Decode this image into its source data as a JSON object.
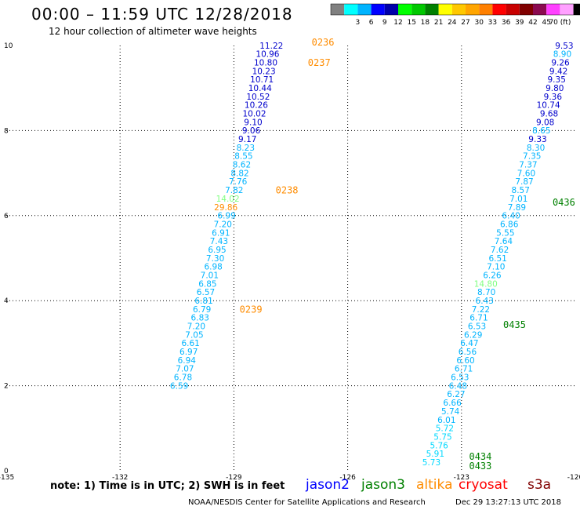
{
  "header": {
    "title": "00:00 – 11:59 UTC 12/28/2018",
    "subtitle": "12 hour collection of altimeter wave heights"
  },
  "colorbar": {
    "colors": [
      "#808080",
      "#00ffff",
      "#00b4ff",
      "#0000ff",
      "#0000aa",
      "#00ff00",
      "#00c800",
      "#008000",
      "#ffff00",
      "#ffc800",
      "#ffa500",
      "#ff8000",
      "#ff0000",
      "#c80000",
      "#800000",
      "#8b0a50",
      "#ff40ff",
      "#ffa0ff",
      "#000000"
    ],
    "labels": [
      "3",
      "6",
      "9",
      "12",
      "15",
      "18",
      "21",
      "24",
      "27",
      "30",
      "33",
      "36",
      "39",
      "42",
      "45",
      "70 (ft)"
    ]
  },
  "chart_data": {
    "type": "scatter",
    "xlim": [
      -135,
      -120
    ],
    "ylim": [
      0,
      10
    ],
    "x_ticks": [
      "-135",
      "-132",
      "-129",
      "-126",
      "-123",
      "-120"
    ],
    "y_ticks": [
      "0",
      "2",
      "4",
      "6",
      "8",
      "10"
    ],
    "grid": true,
    "tracks": [
      {
        "points": [
          {
            "x": -127.7,
            "y": 9.93,
            "label": "11.22",
            "color": "#0000cc"
          },
          {
            "x": -127.8,
            "y": 9.73,
            "label": "10.96",
            "color": "#0000cc"
          },
          {
            "x": -127.85,
            "y": 9.53,
            "label": "10.80",
            "color": "#0000cc"
          },
          {
            "x": -127.9,
            "y": 9.33,
            "label": "10.23",
            "color": "#0000cc"
          },
          {
            "x": -127.95,
            "y": 9.13,
            "label": "10.71",
            "color": "#0000cc"
          },
          {
            "x": -128.0,
            "y": 8.93,
            "label": "10.44",
            "color": "#0000cc"
          },
          {
            "x": -128.05,
            "y": 8.73,
            "label": "10.52",
            "color": "#0000cc"
          },
          {
            "x": -128.1,
            "y": 8.53,
            "label": "10.26",
            "color": "#0000cc"
          },
          {
            "x": -128.15,
            "y": 8.33,
            "label": "10.02",
            "color": "#0000cc"
          },
          {
            "x": -128.25,
            "y": 8.13,
            "label": "9.10",
            "color": "#0000cc"
          },
          {
            "x": -128.3,
            "y": 7.93,
            "label": "9.06",
            "color": "#0000cc"
          },
          {
            "x": -128.4,
            "y": 7.73,
            "label": "9.17",
            "color": "#0000cc"
          },
          {
            "x": -128.45,
            "y": 7.53,
            "label": "8.23",
            "color": "#00b4ff"
          },
          {
            "x": -128.5,
            "y": 7.33,
            "label": "8.55",
            "color": "#00b4ff"
          },
          {
            "x": -128.55,
            "y": 7.13,
            "label": "8.62",
            "color": "#00b4ff"
          },
          {
            "x": -128.6,
            "y": 6.93,
            "label": "8.82",
            "color": "#00b4ff"
          },
          {
            "x": -128.65,
            "y": 6.73,
            "label": "7.76",
            "color": "#00b4ff"
          },
          {
            "x": -128.75,
            "y": 6.53,
            "label": "7.82",
            "color": "#00b4ff"
          },
          {
            "x": -128.85,
            "y": 6.33,
            "label": "14.02",
            "color": "#80ff80"
          },
          {
            "x": -128.9,
            "y": 6.13,
            "label": "29.86",
            "color": "#ff8c00"
          },
          {
            "x": -128.95,
            "y": 5.93,
            "label": "6.99",
            "color": "#00b4ff"
          },
          {
            "x": -129.05,
            "y": 5.73,
            "label": "7.20",
            "color": "#00b4ff"
          },
          {
            "x": -129.1,
            "y": 5.53,
            "label": "6.91",
            "color": "#00b4ff"
          },
          {
            "x": -129.15,
            "y": 5.33,
            "label": "7.43",
            "color": "#00b4ff"
          },
          {
            "x": -129.2,
            "y": 5.13,
            "label": "6.95",
            "color": "#00b4ff"
          },
          {
            "x": -129.25,
            "y": 4.93,
            "label": "7.30",
            "color": "#00b4ff"
          },
          {
            "x": -129.3,
            "y": 4.73,
            "label": "6.98",
            "color": "#00b4ff"
          },
          {
            "x": -129.4,
            "y": 4.53,
            "label": "7.01",
            "color": "#00b4ff"
          },
          {
            "x": -129.45,
            "y": 4.33,
            "label": "6.85",
            "color": "#00b4ff"
          },
          {
            "x": -129.5,
            "y": 4.13,
            "label": "6.57",
            "color": "#00b4ff"
          },
          {
            "x": -129.55,
            "y": 3.93,
            "label": "6.81",
            "color": "#00b4ff"
          },
          {
            "x": -129.6,
            "y": 3.73,
            "label": "6.79",
            "color": "#00b4ff"
          },
          {
            "x": -129.65,
            "y": 3.53,
            "label": "6.83",
            "color": "#00b4ff"
          },
          {
            "x": -129.75,
            "y": 3.33,
            "label": "7.20",
            "color": "#00b4ff"
          },
          {
            "x": -129.8,
            "y": 3.13,
            "label": "7.05",
            "color": "#00b4ff"
          },
          {
            "x": -129.9,
            "y": 2.93,
            "label": "6.61",
            "color": "#00b4ff"
          },
          {
            "x": -129.95,
            "y": 2.73,
            "label": "6.97",
            "color": "#00b4ff"
          },
          {
            "x": -130.0,
            "y": 2.53,
            "label": "6.94",
            "color": "#00b4ff"
          },
          {
            "x": -130.05,
            "y": 2.33,
            "label": "7.07",
            "color": "#00b4ff"
          },
          {
            "x": -130.1,
            "y": 2.13,
            "label": "6.78",
            "color": "#00b4ff"
          },
          {
            "x": -130.2,
            "y": 1.93,
            "label": "6.59",
            "color": "#00b4ff"
          }
        ],
        "times": [
          {
            "x": -126.95,
            "y": 10.0,
            "label": "0236",
            "color": "#ff8c00"
          },
          {
            "x": -127.05,
            "y": 9.52,
            "label": "0237",
            "color": "#ff8c00"
          },
          {
            "x": -127.9,
            "y": 6.52,
            "label": "0238",
            "color": "#ff8c00"
          },
          {
            "x": -128.85,
            "y": 3.72,
            "label": "0239",
            "color": "#ff8c00"
          }
        ]
      },
      {
        "points": [
          {
            "x": -120.05,
            "y": 9.93,
            "label": "9.53",
            "color": "#0000cc"
          },
          {
            "x": -120.1,
            "y": 9.73,
            "label": "8.90",
            "color": "#00b4ff"
          },
          {
            "x": -120.15,
            "y": 9.53,
            "label": "9.26",
            "color": "#0000cc"
          },
          {
            "x": -120.2,
            "y": 9.33,
            "label": "9.42",
            "color": "#0000cc"
          },
          {
            "x": -120.25,
            "y": 9.13,
            "label": "9.35",
            "color": "#0000cc"
          },
          {
            "x": -120.3,
            "y": 8.93,
            "label": "9.80",
            "color": "#0000cc"
          },
          {
            "x": -120.35,
            "y": 8.73,
            "label": "9.36",
            "color": "#0000cc"
          },
          {
            "x": -120.4,
            "y": 8.53,
            "label": "10.74",
            "color": "#0000cc"
          },
          {
            "x": -120.45,
            "y": 8.33,
            "label": "9.68",
            "color": "#0000cc"
          },
          {
            "x": -120.55,
            "y": 8.13,
            "label": "9.08",
            "color": "#0000cc"
          },
          {
            "x": -120.65,
            "y": 7.93,
            "label": "8.65",
            "color": "#00b4ff"
          },
          {
            "x": -120.75,
            "y": 7.73,
            "label": "9.33",
            "color": "#0000cc"
          },
          {
            "x": -120.8,
            "y": 7.53,
            "label": "8.30",
            "color": "#00b4ff"
          },
          {
            "x": -120.9,
            "y": 7.33,
            "label": "7.35",
            "color": "#00b4ff"
          },
          {
            "x": -121.0,
            "y": 7.13,
            "label": "7.37",
            "color": "#00b4ff"
          },
          {
            "x": -121.05,
            "y": 6.93,
            "label": "7.60",
            "color": "#00b4ff"
          },
          {
            "x": -121.1,
            "y": 6.73,
            "label": "7.87",
            "color": "#00b4ff"
          },
          {
            "x": -121.2,
            "y": 6.53,
            "label": "8.57",
            "color": "#00b4ff"
          },
          {
            "x": -121.25,
            "y": 6.33,
            "label": "7.01",
            "color": "#00b4ff"
          },
          {
            "x": -121.3,
            "y": 6.13,
            "label": "7.89",
            "color": "#00b4ff"
          },
          {
            "x": -121.45,
            "y": 5.93,
            "label": "6.40",
            "color": "#00b4ff"
          },
          {
            "x": -121.5,
            "y": 5.73,
            "label": "6.86",
            "color": "#00b4ff"
          },
          {
            "x": -121.6,
            "y": 5.53,
            "label": "5.55",
            "color": "#00b4ff"
          },
          {
            "x": -121.65,
            "y": 5.33,
            "label": "7.64",
            "color": "#00b4ff"
          },
          {
            "x": -121.75,
            "y": 5.13,
            "label": "7.62",
            "color": "#00b4ff"
          },
          {
            "x": -121.8,
            "y": 4.93,
            "label": "6.51",
            "color": "#00b4ff"
          },
          {
            "x": -121.85,
            "y": 4.73,
            "label": "7.10",
            "color": "#00b4ff"
          },
          {
            "x": -121.95,
            "y": 4.53,
            "label": "6.26",
            "color": "#00b4ff"
          },
          {
            "x": -122.05,
            "y": 4.33,
            "label": "14.80",
            "color": "#80ff80"
          },
          {
            "x": -122.1,
            "y": 4.13,
            "label": "8.70",
            "color": "#00b4ff"
          },
          {
            "x": -122.15,
            "y": 3.93,
            "label": "6.43",
            "color": "#00b4ff"
          },
          {
            "x": -122.25,
            "y": 3.73,
            "label": "7.22",
            "color": "#00b4ff"
          },
          {
            "x": -122.3,
            "y": 3.53,
            "label": "6.71",
            "color": "#00b4ff"
          },
          {
            "x": -122.35,
            "y": 3.33,
            "label": "6.53",
            "color": "#00b4ff"
          },
          {
            "x": -122.45,
            "y": 3.13,
            "label": "6.29",
            "color": "#00b4ff"
          },
          {
            "x": -122.55,
            "y": 2.93,
            "label": "6.47",
            "color": "#00b4ff"
          },
          {
            "x": -122.6,
            "y": 2.73,
            "label": "6.56",
            "color": "#00b4ff"
          },
          {
            "x": -122.65,
            "y": 2.53,
            "label": "6.60",
            "color": "#00b4ff"
          },
          {
            "x": -122.7,
            "y": 2.33,
            "label": "6.71",
            "color": "#00b4ff"
          },
          {
            "x": -122.8,
            "y": 2.13,
            "label": "6.53",
            "color": "#00b4ff"
          },
          {
            "x": -122.85,
            "y": 1.93,
            "label": "6.48",
            "color": "#00b4ff"
          },
          {
            "x": -122.9,
            "y": 1.73,
            "label": "6.27",
            "color": "#00b4ff"
          },
          {
            "x": -123.0,
            "y": 1.53,
            "label": "6.66",
            "color": "#00b4ff"
          },
          {
            "x": -123.05,
            "y": 1.33,
            "label": "5.74",
            "color": "#00b4ff"
          },
          {
            "x": -123.15,
            "y": 1.13,
            "label": "6.01",
            "color": "#00b4ff"
          },
          {
            "x": -123.2,
            "y": 0.93,
            "label": "5.72",
            "color": "#00d8ff"
          },
          {
            "x": -123.25,
            "y": 0.73,
            "label": "5.75",
            "color": "#00d8ff"
          },
          {
            "x": -123.35,
            "y": 0.53,
            "label": "5.76",
            "color": "#00d8ff"
          },
          {
            "x": -123.45,
            "y": 0.33,
            "label": "5.91",
            "color": "#00d8ff"
          },
          {
            "x": -123.55,
            "y": 0.13,
            "label": "5.73",
            "color": "#00d8ff"
          }
        ],
        "times": [
          {
            "x": -120.6,
            "y": 6.24,
            "label": "0436",
            "color": "#008000"
          },
          {
            "x": -121.9,
            "y": 3.36,
            "label": "0435",
            "color": "#008000"
          },
          {
            "x": -122.8,
            "y": 0.26,
            "label": "0434",
            "color": "#008000"
          },
          {
            "x": -122.8,
            "y": 0.04,
            "label": "0433",
            "color": "#008000"
          }
        ]
      }
    ]
  },
  "footer": {
    "note": "note: 1) Time is in UTC; 2) SWH is in feet",
    "satellites": [
      {
        "name": "jason2",
        "color": "#0000ff"
      },
      {
        "name": "jason3",
        "color": "#008000"
      },
      {
        "name": "altika",
        "color": "#ff8c00"
      },
      {
        "name": "cryosat",
        "color": "#ff0000"
      },
      {
        "name": "s3a",
        "color": "#800000"
      }
    ],
    "credit": "NOAA/NESDIS Center for Satellite Applications and Research",
    "timestamp": "Dec 29 13:27:13 UTC 2018"
  }
}
